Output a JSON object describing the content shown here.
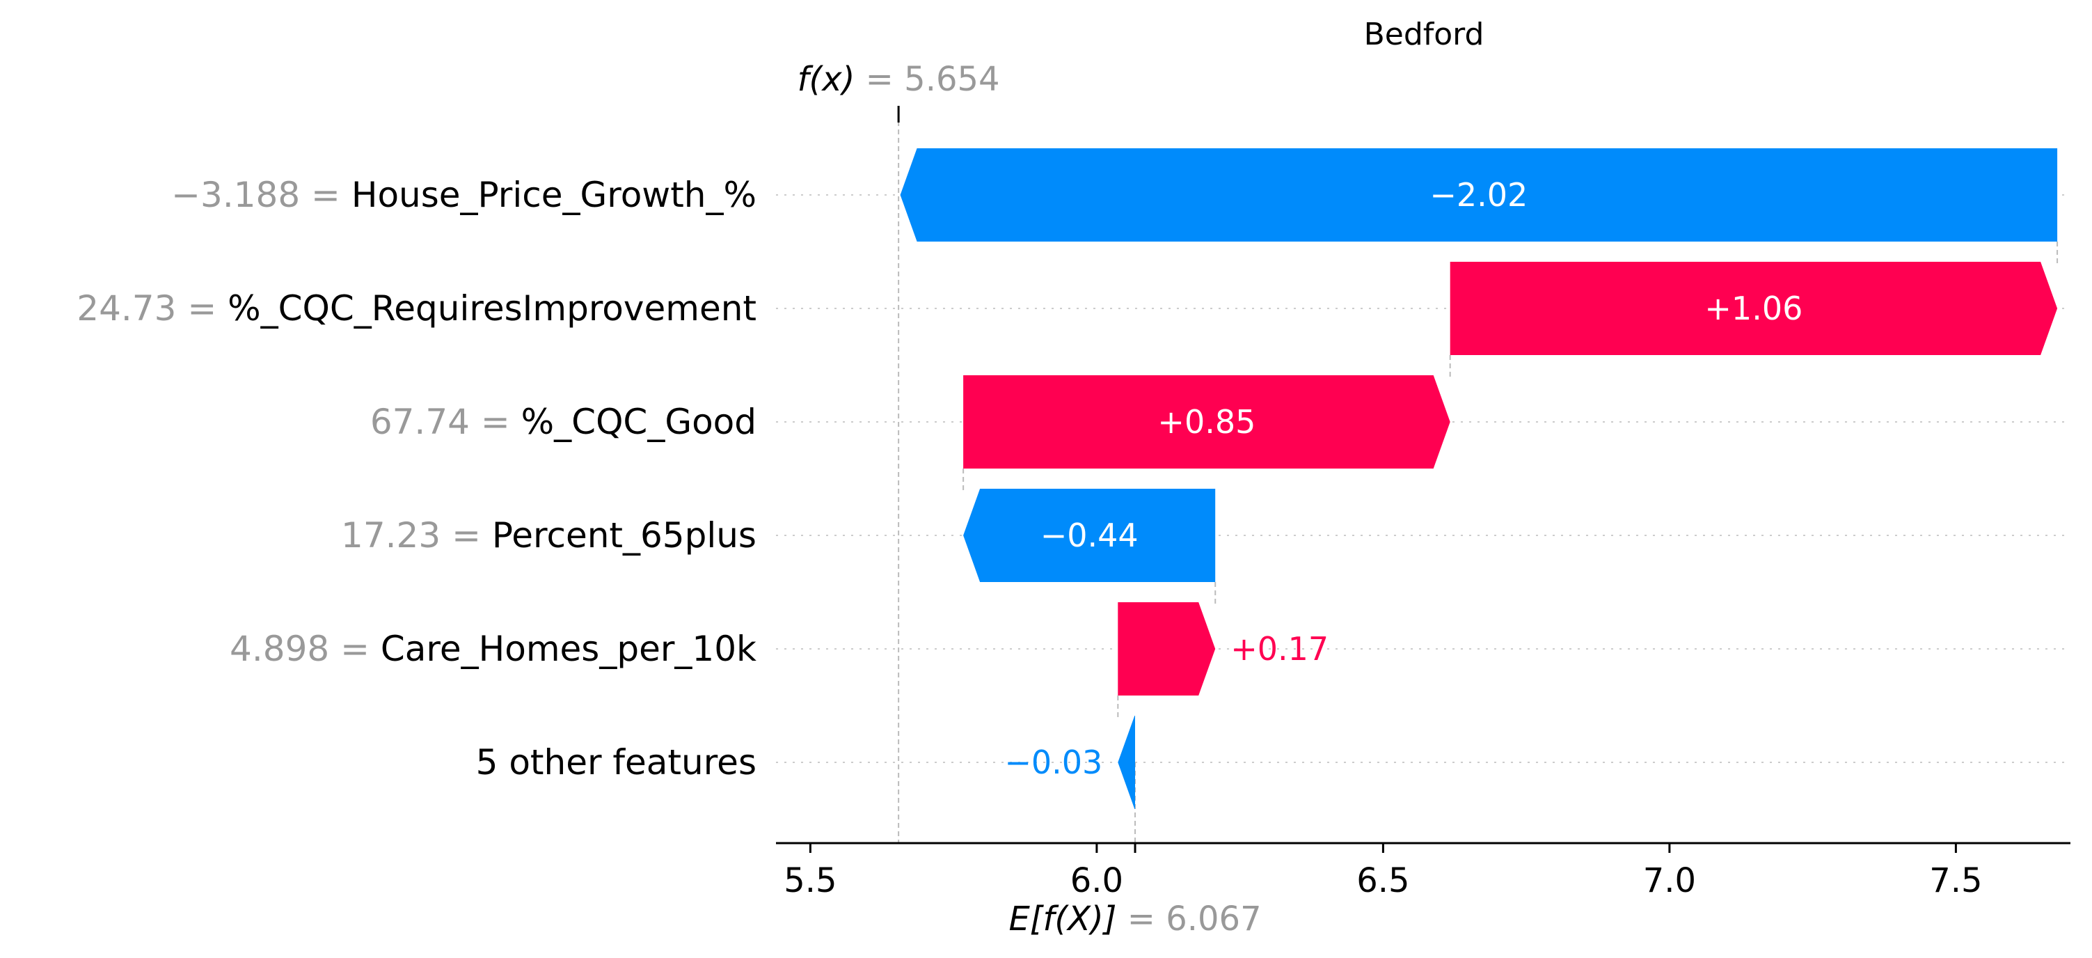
{
  "chart_data": {
    "type": "waterfall",
    "title": "Bedford",
    "colors": {
      "positive": "#ff0051",
      "negative": "#008bfb",
      "value_text": "#999999"
    },
    "base_value": 6.067,
    "output_value": 5.654,
    "base_label": {
      "name": "E[f(X)]",
      "eq": "= 6.067"
    },
    "output_label": {
      "name": "f(x)",
      "eq": "= 5.654"
    },
    "xlim": [
      5.44,
      7.7
    ],
    "xticks": [
      {
        "value": 5.5,
        "label": "5.5"
      },
      {
        "value": 6.0,
        "label": "6.0"
      },
      {
        "value": 6.5,
        "label": "6.5"
      },
      {
        "value": 7.0,
        "label": "7.0"
      },
      {
        "value": 7.5,
        "label": "7.5"
      }
    ],
    "features": [
      {
        "value_text": "−3.188 =",
        "name": "House_Price_Growth_%",
        "shap": -2.02,
        "label": "−2.02"
      },
      {
        "value_text": "24.73 =",
        "name": "%_CQC_RequiresImprovement",
        "shap": 1.06,
        "label": "+1.06"
      },
      {
        "value_text": "67.74 =",
        "name": "%_CQC_Good",
        "shap": 0.85,
        "label": "+0.85"
      },
      {
        "value_text": "17.23 =",
        "name": "Percent_65plus",
        "shap": -0.44,
        "label": "−0.44"
      },
      {
        "value_text": "4.898 =",
        "name": "Care_Homes_per_10k",
        "shap": 0.17,
        "label": "+0.17"
      },
      {
        "value_text": "",
        "name": "5 other features",
        "shap": -0.03,
        "label": "−0.03"
      }
    ]
  }
}
